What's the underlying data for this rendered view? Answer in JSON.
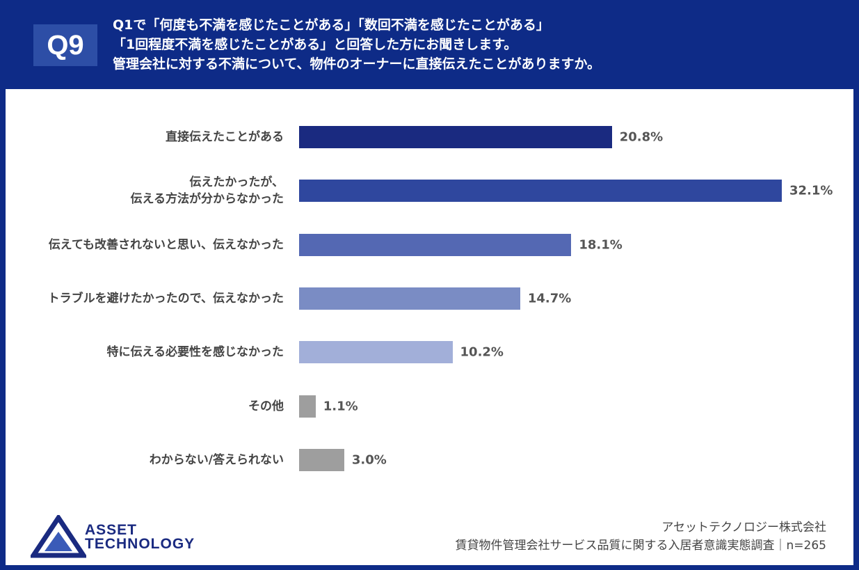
{
  "header": {
    "badge": "Q9",
    "question": [
      "Q1で「何度も不満を感じたことがある」「数回不満を感じたことがある」",
      "「1回程度不満を感じたことがある」と回答した方にお聞きします。",
      "管理会社に対する不満について、物件のオーナーに直接伝えたことがありますか。"
    ]
  },
  "chart_data": {
    "type": "bar",
    "orientation": "horizontal",
    "categories": [
      "直接伝えたことがある",
      "伝えたかったが、\n伝える方法が分からなかった",
      "伝えても改善されないと思い、伝えなかった",
      "トラブルを避けたかったので、伝えなかった",
      "特に伝える必要性を感じなかった",
      "その他",
      "わからない/答えられない"
    ],
    "values": [
      20.8,
      32.1,
      18.1,
      14.7,
      10.2,
      1.1,
      3.0
    ],
    "value_labels": [
      "20.8%",
      "32.1%",
      "18.1%",
      "14.7%",
      "10.2%",
      "1.1%",
      "3.0%"
    ],
    "colors": [
      "#1a2a80",
      "#2f479e",
      "#5468b3",
      "#7a8cc4",
      "#a2afd9",
      "#9e9e9e",
      "#9e9e9e"
    ]
  },
  "footer": {
    "logo": [
      "ASSET",
      "TECHNOLOGY"
    ],
    "company": "アセットテクノロジー株式会社",
    "source": "賃貸物件管理会社サービス品質に関する入居者意識実態調査｜n=265"
  }
}
